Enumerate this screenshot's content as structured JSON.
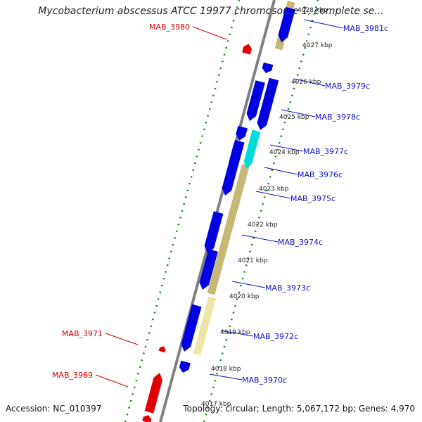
{
  "header": {
    "title": "Mycobacterium abscessus ATCC 19977 chromosome 1, complete se..."
  },
  "footer": {
    "accession": "Accession: NC_010397",
    "summary": "Topology: circular; Length: 5,067,172 bp; Genes: 4,970"
  },
  "colors": {
    "forward_gene": "#e00000",
    "reverse_gene": "#0000e0",
    "highlight_gene": "#00dcdc",
    "cds_track": "#c8b878",
    "cds_track_light": "#eee6a8",
    "axis": "#808080",
    "tick_dots": "#008a00",
    "forward_label": "#d10000",
    "reverse_label": "#1010c0"
  },
  "genes": {
    "forward": [
      "MAB_3980",
      "MAB_3971",
      "MAB_3969"
    ],
    "reverse": [
      "MAB_3981c",
      "MAB_3979c",
      "MAB_3978c",
      "MAB_3977c",
      "MAB_3976c",
      "MAB_3975c",
      "MAB_3974c",
      "MAB_3973c",
      "MAB_3972c",
      "MAB_3970c"
    ]
  },
  "scale": {
    "ticks": [
      "4028 kbp",
      "4027 kbp",
      "4026 kbp",
      "4025 kbp",
      "4024 kbp",
      "4023 kbp",
      "4022 kbp",
      "4021 kbp",
      "4020 kbp",
      "4019 kbp",
      "4018 kbp",
      "4017 kbp"
    ]
  }
}
